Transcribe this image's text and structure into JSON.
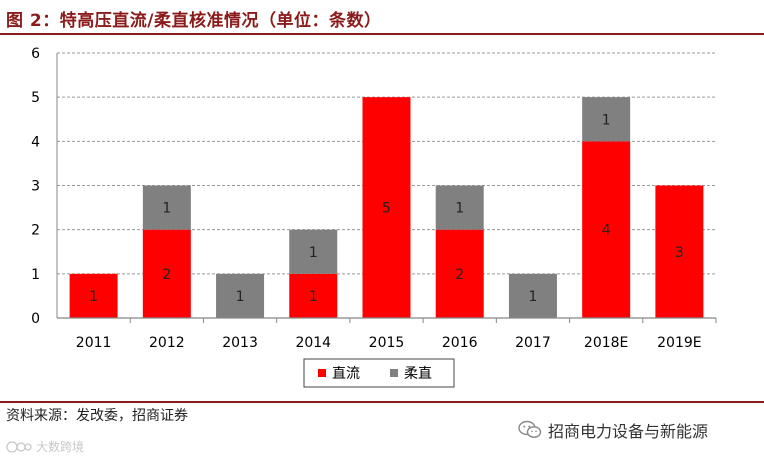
{
  "title": "图 2：特高压直流/柔直核准情况（单位：条数）",
  "source": "资料来源：发改委，招商证券",
  "wechat_account": "招商电力设备与新能源",
  "watermark": "大数跨境",
  "colors": {
    "dc": "#ff0000",
    "flex": "#808080",
    "accent": "#8b1a1a",
    "grid": "#999999"
  },
  "chart_data": {
    "type": "bar",
    "stacked": true,
    "title": "特高压直流/柔直核准情况（单位：条数）",
    "categories": [
      "2011",
      "2012",
      "2013",
      "2014",
      "2015",
      "2016",
      "2017",
      "2018E",
      "2019E"
    ],
    "series": [
      {
        "name": "直流",
        "color": "#ff0000",
        "values": [
          1,
          2,
          0,
          1,
          5,
          2,
          0,
          4,
          3
        ]
      },
      {
        "name": "柔直",
        "color": "#808080",
        "values": [
          0,
          1,
          1,
          1,
          0,
          1,
          1,
          1,
          0
        ]
      }
    ],
    "ylim": [
      0,
      6
    ],
    "yticks": [
      0,
      1,
      2,
      3,
      4,
      5,
      6
    ],
    "grid": true,
    "legend": "bottom-center",
    "xlabel": "",
    "ylabel": ""
  }
}
